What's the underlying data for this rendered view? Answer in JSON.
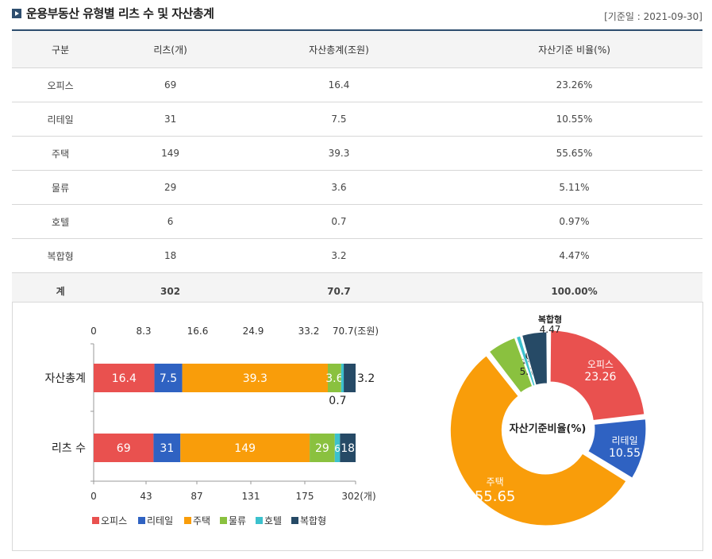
{
  "header": {
    "title": "운용부동산 유형별 리츠 수 및 자산총계",
    "base_date": "[기준일 : 2021-09-30]"
  },
  "table": {
    "columns": [
      "구분",
      "리츠(개)",
      "자산총계(조원)",
      "자산기준 비율(%)"
    ],
    "rows": [
      [
        "오피스",
        "69",
        "16.4",
        "23.26%"
      ],
      [
        "리테일",
        "31",
        "7.5",
        "10.55%"
      ],
      [
        "주택",
        "149",
        "39.3",
        "55.65%"
      ],
      [
        "물류",
        "29",
        "3.6",
        "5.11%"
      ],
      [
        "호텔",
        "6",
        "0.7",
        "0.97%"
      ],
      [
        "복합형",
        "18",
        "3.2",
        "4.47%"
      ]
    ],
    "total": [
      "계",
      "302",
      "70.7",
      "100.00%"
    ]
  },
  "colors": {
    "오피스": "#e9514f",
    "리테일": "#2f62c2",
    "주택": "#f99d0a",
    "물류": "#8ac13f",
    "호텔": "#3cc1cd",
    "복합형": "#264a66"
  },
  "chart_data": [
    {
      "type": "bar",
      "orientation": "horizontal-stacked",
      "categories": [
        "자산총계",
        "리츠 수"
      ],
      "series": [
        {
          "name": "오피스",
          "values": [
            16.4,
            69
          ]
        },
        {
          "name": "리테일",
          "values": [
            7.5,
            31
          ]
        },
        {
          "name": "주택",
          "values": [
            39.3,
            149
          ]
        },
        {
          "name": "물류",
          "values": [
            3.6,
            29
          ]
        },
        {
          "name": "호텔",
          "values": [
            0.7,
            6
          ]
        },
        {
          "name": "복합형",
          "values": [
            3.2,
            18
          ]
        }
      ],
      "top_axis": {
        "ticks": [
          "0",
          "8.3",
          "16.6",
          "24.9",
          "33.2",
          "70.7(조원)"
        ],
        "max": 70.7
      },
      "bottom_axis": {
        "ticks": [
          "0",
          "43",
          "87",
          "131",
          "175",
          "302(개)"
        ],
        "max": 302
      },
      "legend": "bottom-left"
    },
    {
      "type": "pie",
      "variant": "donut",
      "center_label": "자산기준비율(%)",
      "slices": [
        {
          "name": "오피스",
          "value": 23.26
        },
        {
          "name": "리테일",
          "value": 10.55
        },
        {
          "name": "주택",
          "value": 55.65
        },
        {
          "name": "물류",
          "value": 5.11
        },
        {
          "name": "호텔",
          "value": 0.97
        },
        {
          "name": "복합형",
          "value": 4.47
        }
      ]
    }
  ]
}
